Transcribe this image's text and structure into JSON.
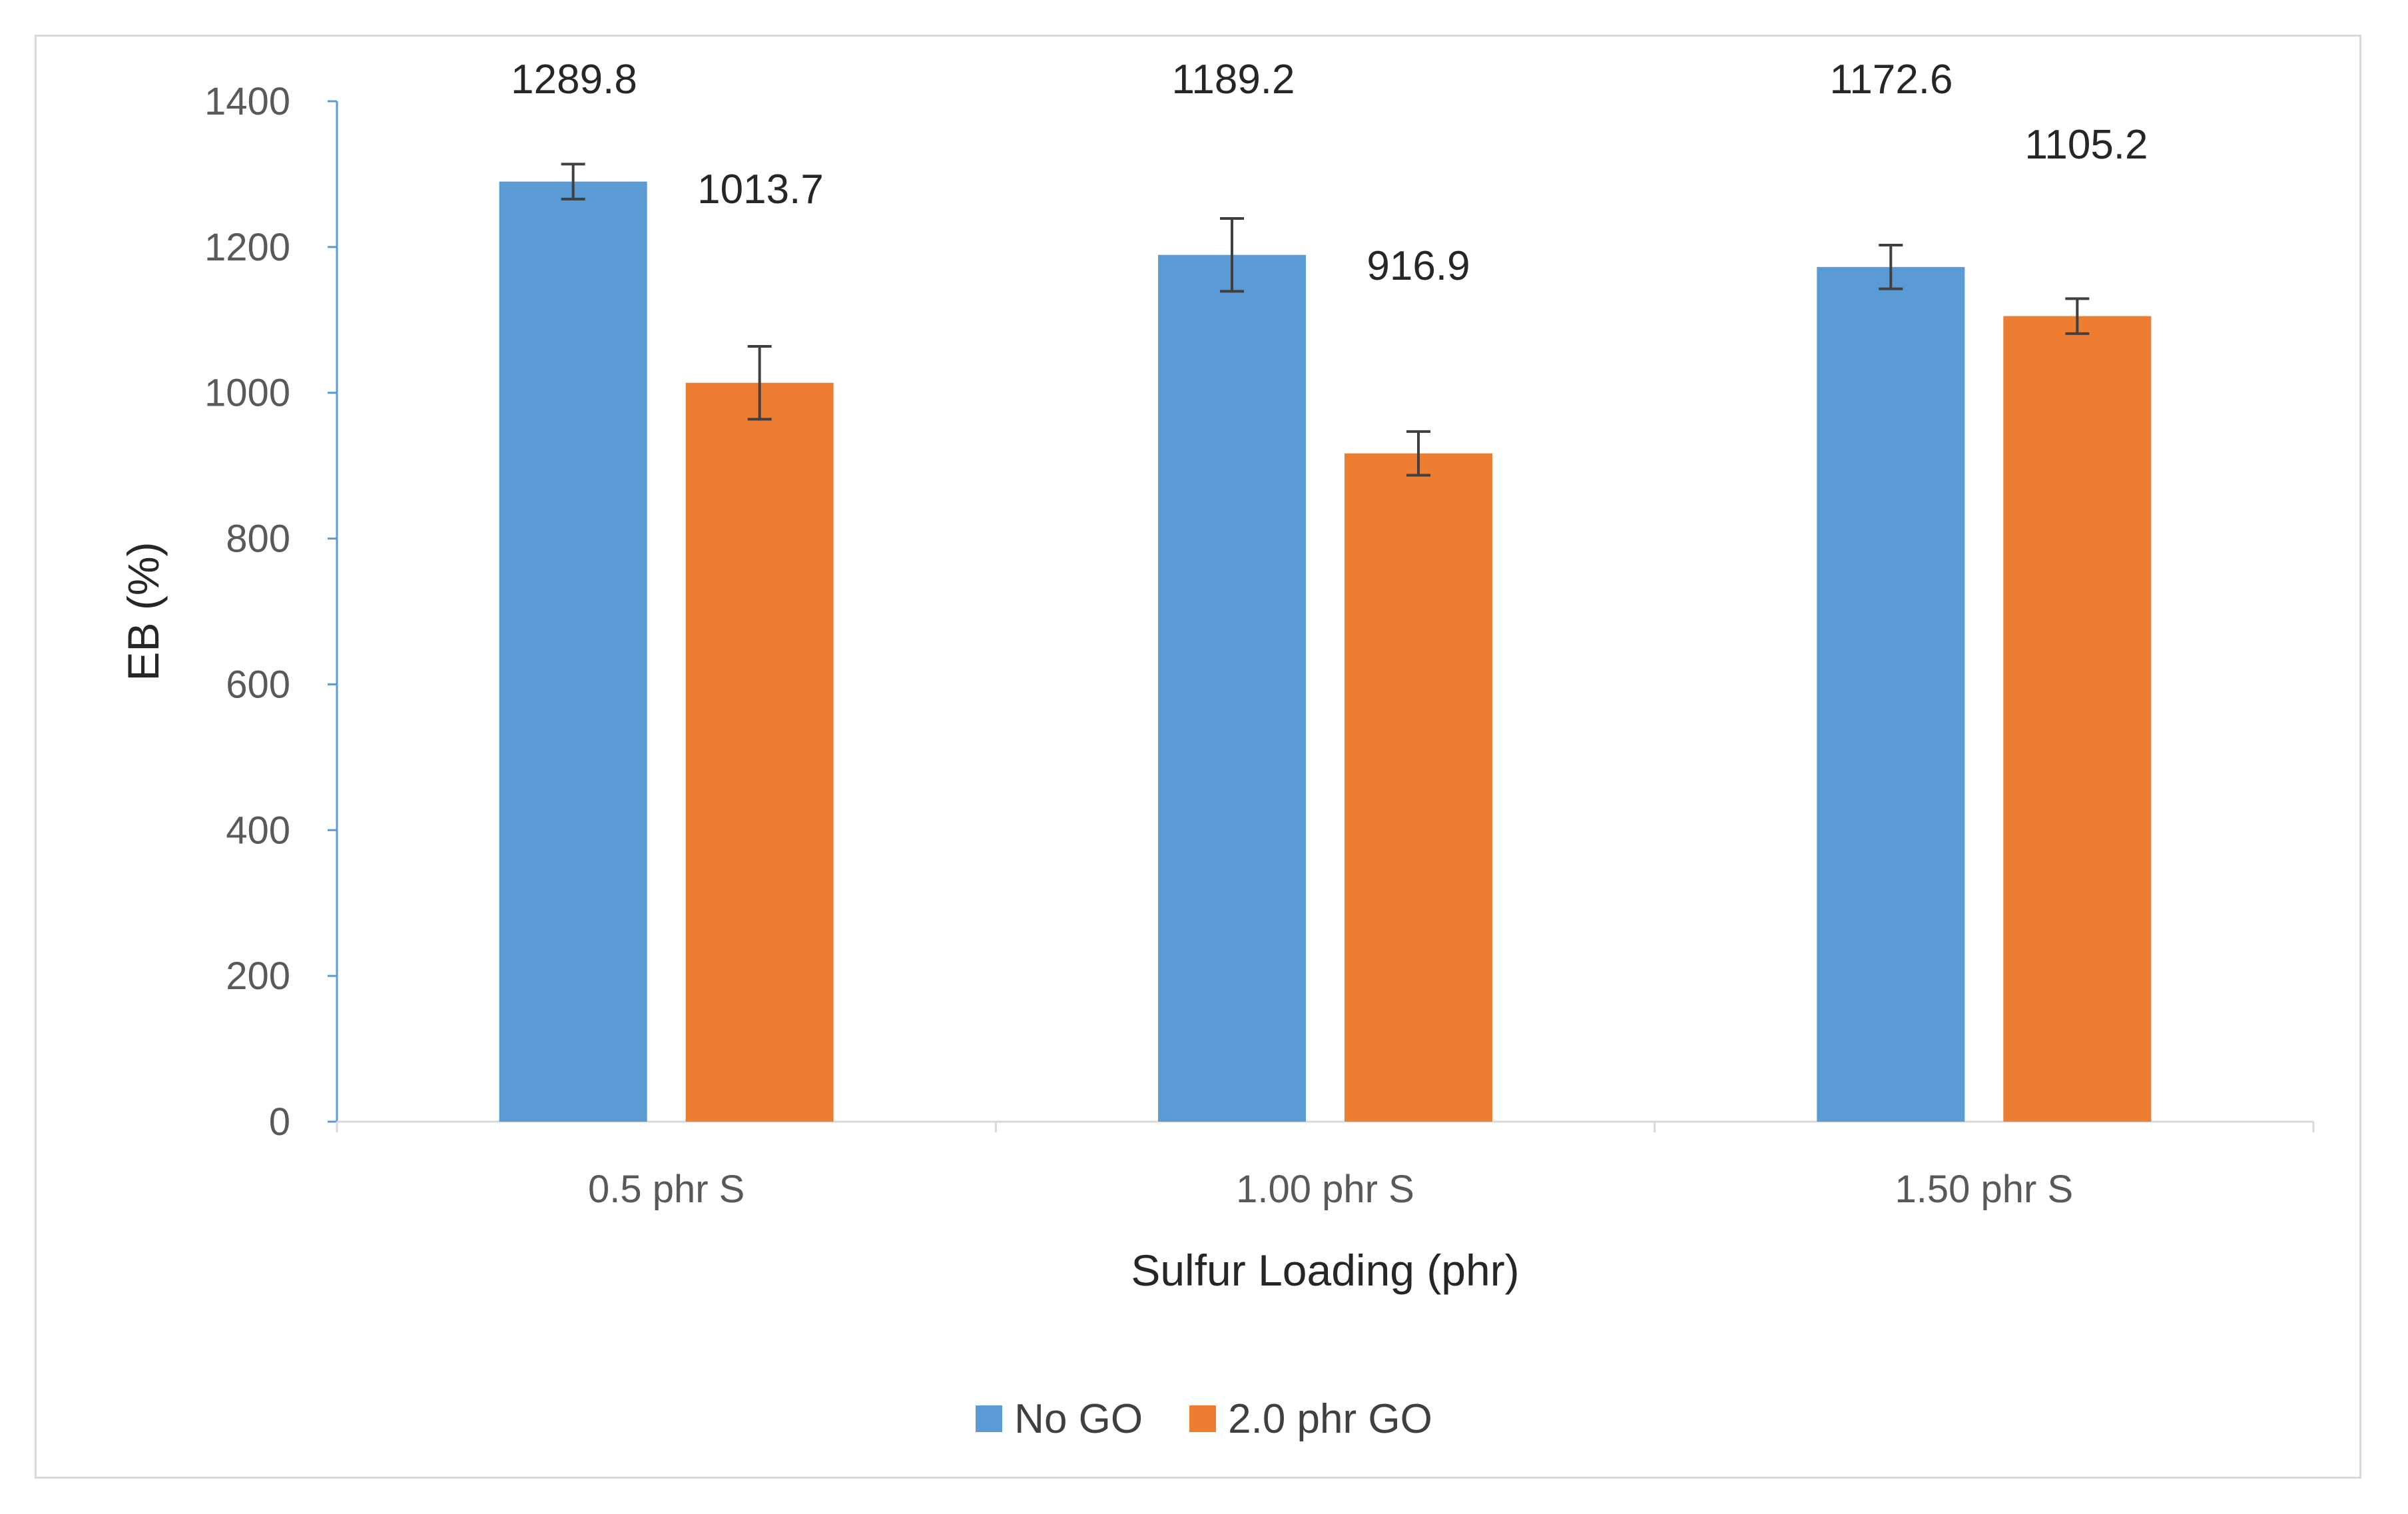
{
  "chart_data": {
    "type": "bar",
    "title": "",
    "xlabel": "Sulfur Loading (phr)",
    "ylabel": "EB (%)",
    "categories": [
      "0.5 phr S",
      "1.00 phr S",
      "1.50 phr S"
    ],
    "series": [
      {
        "name": "No GO",
        "color": "#5b9bd5",
        "values": [
          1289.8,
          1189.2,
          1172.6
        ],
        "labels": [
          "1289.8",
          "1189.2",
          "1172.6"
        ],
        "errors": [
          24,
          50,
          30
        ]
      },
      {
        "name": "2.0 phr GO",
        "color": "#ed7d31",
        "values": [
          1013.7,
          916.9,
          1105.2
        ],
        "labels": [
          "1013.7",
          "916.9",
          "1105.2"
        ],
        "errors": [
          50,
          30,
          24
        ]
      }
    ],
    "ylim": [
      0,
      1400
    ],
    "yticks": [
      0,
      200,
      400,
      600,
      800,
      1000,
      1200,
      1400
    ],
    "grid": false,
    "legend_position": "bottom"
  }
}
